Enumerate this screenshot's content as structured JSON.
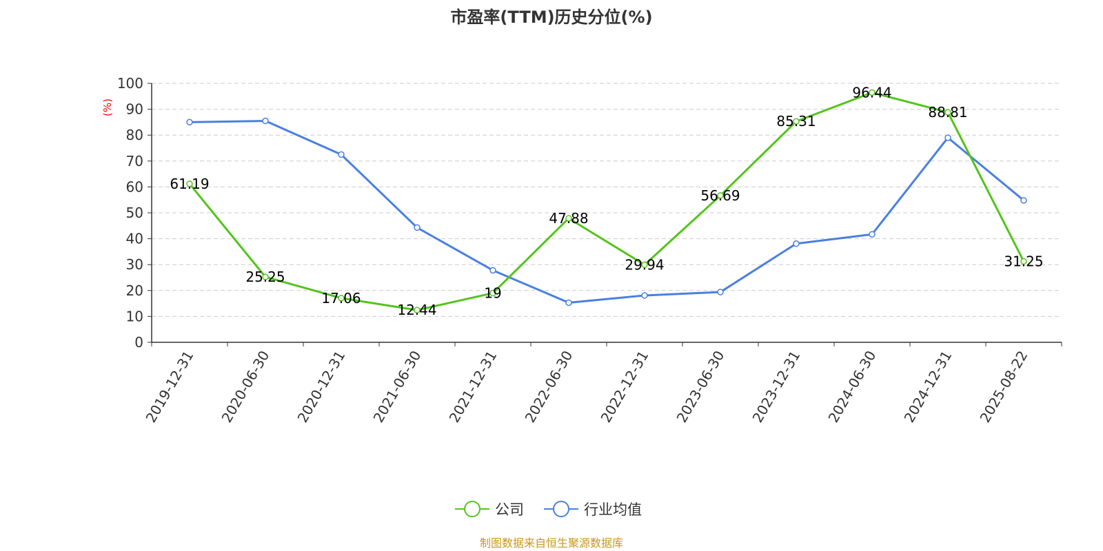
{
  "chart_data": {
    "type": "line",
    "title": "市盈率(TTM)历史分位(%)",
    "xlabel": "",
    "ylabel": "(%)",
    "ylim": [
      0,
      100
    ],
    "yticks": [
      "0",
      "10",
      "20",
      "30",
      "40",
      "50",
      "60",
      "70",
      "80",
      "90",
      "100"
    ],
    "grid": true,
    "legend_position": "bottom",
    "categories": [
      "2019-12-31",
      "2020-06-30",
      "2020-12-31",
      "2021-06-30",
      "2021-12-31",
      "2022-06-30",
      "2022-12-31",
      "2023-06-30",
      "2023-12-31",
      "2024-06-30",
      "2024-12-31",
      "2025-08-22"
    ],
    "series": [
      {
        "name": "公司",
        "color": "#52c41a",
        "values": [
          61.19,
          25.25,
          17.06,
          12.44,
          19,
          47.88,
          29.94,
          56.69,
          85.31,
          96.44,
          88.81,
          31.25
        ],
        "labels": [
          "61.19",
          "25.25",
          "17.06",
          "12.44",
          "19",
          "47.88",
          "29.94",
          "56.69",
          "85.31",
          "96.44",
          "88.81",
          "31.25"
        ]
      },
      {
        "name": "行业均值",
        "color": "#4a7fe0",
        "values": [
          85,
          85.5,
          72.5,
          44.3,
          27.8,
          15.3,
          18.1,
          19.4,
          38.1,
          41.7,
          79,
          54.8
        ]
      }
    ],
    "source": "制图数据来自恒生聚源数据库"
  }
}
